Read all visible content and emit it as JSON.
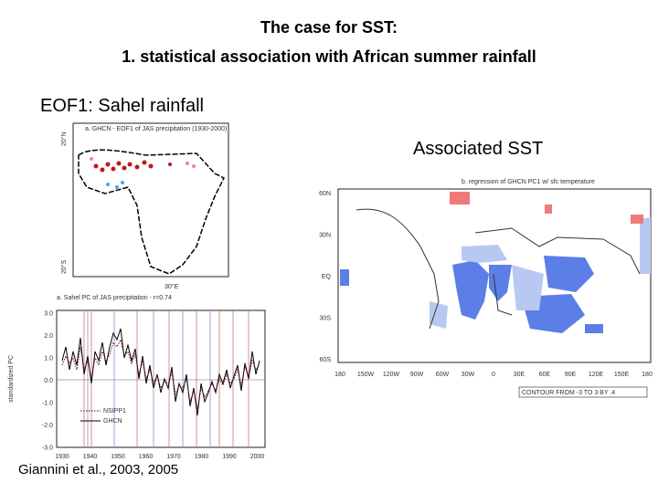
{
  "title": {
    "line1": "The case for SST:",
    "line2": "1. statistical association with African summer rainfall"
  },
  "left_heading": "EOF1: Sahel rainfall",
  "right_heading": "Associated SST",
  "eof_map": {
    "title": "a. GHCN - EOF1 of JAS precipitation (1930-2000)",
    "lat_labels": [
      "20°N",
      "20°S"
    ],
    "lon_label": "30°E"
  },
  "timeseries": {
    "title": "a. Sahel PC of JAS precipitation - r=0.74",
    "y_label": "standardized PC",
    "y_ticks": [
      "3.0",
      "2.0",
      "1.0",
      "0.0",
      "-1.0",
      "-2.0",
      "-3.0"
    ],
    "x_ticks": [
      "1930",
      "1940",
      "1950",
      "1960",
      "1970",
      "1980",
      "1990",
      "2000"
    ],
    "legend": [
      "NSIPP1",
      "GHCN"
    ]
  },
  "sst_map": {
    "title": "b. regression of GHCN PC1 w/ sfc temperature",
    "lat_labels": [
      "60N",
      "30N",
      "EQ",
      "30S",
      "60S"
    ],
    "lon_labels": [
      "180",
      "150W",
      "120W",
      "90W",
      "60W",
      "30W",
      "0",
      "30E",
      "60E",
      "90E",
      "120E",
      "150E",
      "180"
    ],
    "contour_note": "CONTOUR FROM -3 TO 3 BY .4"
  },
  "citation": "Giannini et al., 2003, 2005"
}
